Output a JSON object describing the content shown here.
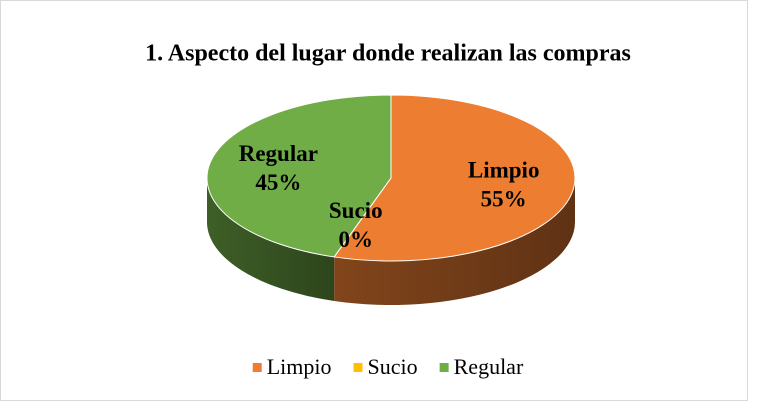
{
  "chart_data": {
    "type": "pie3d",
    "title": "1. Aspecto del lugar donde realizan las compras",
    "categories": [
      "Limpio",
      "Sucio",
      "Regular"
    ],
    "values": [
      55,
      0,
      45
    ],
    "value_labels": [
      "55%",
      "0%",
      "45%"
    ],
    "colors": [
      "#ED7D31",
      "#FFC000",
      "#70AD47"
    ],
    "legend": "bottom"
  }
}
